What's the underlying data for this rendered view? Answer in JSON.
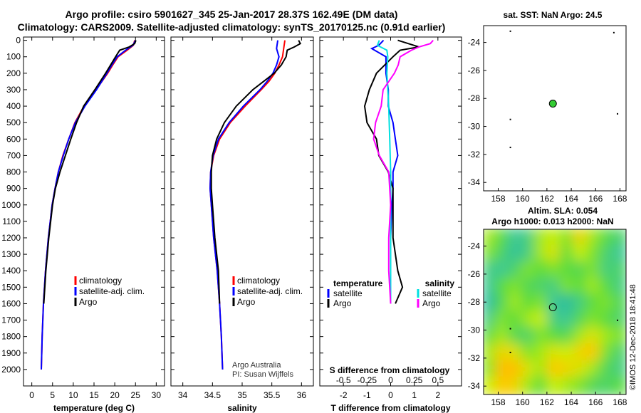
{
  "title_line1": "Argo profile: csiro 5901627_345 25-Jan-2017 28.37S 162.49E (DM data)",
  "title_line2": "Climatology: CARS2009. Satellite-adjusted climatology: synTS_20170125.nc (0.91d earlier)",
  "colors": {
    "climatology": "#ff0000",
    "satellite": "#0000ff",
    "argo": "#000000",
    "s_satellite": "#00e0e0",
    "s_argo": "#ff00ff"
  },
  "depth_ticks": [
    0,
    100,
    200,
    300,
    400,
    500,
    600,
    700,
    800,
    900,
    1000,
    1100,
    1200,
    1300,
    1400,
    1500,
    1600,
    1700,
    1800,
    1900,
    2000
  ],
  "chart_data": [
    {
      "type": "line",
      "name": "temperature",
      "xlabel": "temperature (deg C)",
      "xlim": [
        -2,
        32
      ],
      "ylim": [
        2100,
        -20
      ],
      "xticks": [
        0,
        5,
        10,
        15,
        20,
        25,
        30
      ],
      "legend": [
        "climatology",
        "satellite-adj. clim.",
        "Argo"
      ],
      "series": [
        {
          "name": "climatology",
          "depth": [
            0,
            30,
            60,
            100,
            150,
            200,
            300,
            400,
            500,
            600,
            700,
            800,
            900,
            1000,
            1200,
            1400,
            1600,
            1800,
            2000
          ],
          "values": [
            24.8,
            24.5,
            23.0,
            20.8,
            19.5,
            18.3,
            15.5,
            12.6,
            10.4,
            8.9,
            7.5,
            6.4,
            5.6,
            4.9,
            4.0,
            3.3,
            2.8,
            2.5,
            2.3
          ]
        },
        {
          "name": "satellite-adj. clim.",
          "depth": [
            0,
            30,
            60,
            100,
            150,
            200,
            300,
            400,
            500,
            600,
            700,
            800,
            900,
            1000,
            1200,
            1400,
            1600,
            1800,
            2000
          ],
          "values": [
            25.0,
            24.4,
            22.6,
            20.6,
            19.3,
            18.1,
            15.6,
            12.8,
            10.5,
            8.9,
            7.6,
            6.4,
            5.6,
            4.9,
            4.0,
            3.3,
            2.8,
            2.5,
            2.3
          ]
        },
        {
          "name": "Argo",
          "depth": [
            0,
            20,
            40,
            60,
            100,
            150,
            200,
            300,
            400,
            500,
            600,
            700,
            800,
            900,
            1000,
            1200,
            1400,
            1600
          ],
          "values": [
            25.1,
            24.8,
            23.5,
            21.2,
            20.2,
            19.0,
            17.8,
            15.2,
            12.5,
            10.8,
            9.4,
            8.1,
            6.8,
            5.7,
            5.0,
            4.1,
            3.4,
            2.9
          ]
        }
      ]
    },
    {
      "type": "line",
      "name": "salinity",
      "xlabel": "salinity",
      "xlim": [
        33.8,
        36.2
      ],
      "ylim": [
        2100,
        -20
      ],
      "xticks": [
        34,
        34.5,
        35,
        35.5,
        36
      ],
      "xticklabels": [
        "34",
        "34.5",
        "35",
        "35.5",
        "36"
      ],
      "legend": [
        "climatology",
        "satellite-adj. clim.",
        "Argo"
      ],
      "annotation": [
        "Argo Australia",
        "PI: Susan Wijffels"
      ],
      "series": [
        {
          "name": "climatology",
          "depth": [
            0,
            50,
            100,
            150,
            200,
            250,
            300,
            400,
            500,
            600,
            700,
            800,
            900,
            1000,
            1200,
            1400,
            1600,
            1800,
            2000
          ],
          "values": [
            35.72,
            35.7,
            35.68,
            35.62,
            35.55,
            35.45,
            35.32,
            35.05,
            34.8,
            34.62,
            34.52,
            34.47,
            34.46,
            34.48,
            34.52,
            34.58,
            34.62,
            34.65,
            34.67
          ]
        },
        {
          "name": "satellite-adj. clim.",
          "depth": [
            0,
            50,
            100,
            150,
            200,
            250,
            300,
            400,
            500,
            600,
            700,
            800,
            900,
            1000,
            1200,
            1400,
            1600,
            1800,
            2000
          ],
          "values": [
            35.6,
            35.58,
            35.62,
            35.58,
            35.52,
            35.42,
            35.3,
            35.02,
            34.78,
            34.6,
            34.51,
            34.47,
            34.46,
            34.48,
            34.52,
            34.58,
            34.62,
            34.65,
            34.67
          ]
        },
        {
          "name": "Argo",
          "depth": [
            0,
            20,
            40,
            60,
            100,
            150,
            200,
            250,
            300,
            400,
            500,
            600,
            700,
            800,
            900,
            1000,
            1200,
            1400,
            1600
          ],
          "values": [
            35.95,
            35.98,
            35.88,
            35.76,
            35.74,
            35.66,
            35.54,
            35.36,
            35.18,
            34.9,
            34.7,
            34.57,
            34.5,
            34.48,
            34.48,
            34.5,
            34.54,
            34.6,
            34.62
          ]
        }
      ]
    },
    {
      "type": "line",
      "name": "difference",
      "xlabel": "T difference from climatology",
      "xlabel_s": "S difference from climatology",
      "xlim": [
        -3,
        3
      ],
      "ylim": [
        2100,
        -20
      ],
      "xticks": [
        -2,
        -1,
        0,
        1,
        2
      ],
      "xticklabels": [
        "-2",
        "-1",
        "0",
        "1",
        "2"
      ],
      "s_ticks": [
        -0.5,
        -0.25,
        0,
        0.25,
        0.5
      ],
      "s_ticklabels": [
        "-0.5",
        "-0.25",
        "0",
        "0.25",
        "0.5"
      ],
      "legend_t_title": "temperature",
      "legend_s_title": "salinity",
      "legend_t": [
        "satellite",
        "Argo"
      ],
      "legend_s": [
        "satellite",
        "Argo"
      ],
      "series": [
        {
          "name": "T satellite",
          "depth": [
            0,
            30,
            50,
            100,
            200,
            300,
            400,
            500,
            600,
            700,
            800,
            900,
            1000,
            1200,
            1400,
            1600
          ],
          "values": [
            -0.3,
            -0.5,
            -0.8,
            -0.2,
            -0.2,
            -0.1,
            -0.1,
            0.1,
            0.2,
            0.3,
            0.1,
            0.1,
            0.05,
            0.0,
            0.0,
            0.0
          ]
        },
        {
          "name": "T Argo",
          "depth": [
            0,
            40,
            60,
            100,
            200,
            300,
            400,
            500,
            600,
            700,
            800,
            900,
            1000,
            1200,
            1400,
            1500,
            1600
          ],
          "values": [
            0.3,
            1.2,
            0.4,
            0.1,
            -0.6,
            -0.9,
            -1.1,
            -1.0,
            -0.6,
            -0.5,
            -0.1,
            0.1,
            0.1,
            0.1,
            0.3,
            0.5,
            0.2
          ]
        },
        {
          "name": "S satellite",
          "depth": [
            0,
            30,
            60,
            100,
            200,
            300,
            400,
            600,
            800,
            1000,
            1200,
            1400,
            1600
          ],
          "values": [
            -0.12,
            -0.14,
            -0.04,
            -0.03,
            -0.04,
            -0.03,
            -0.02,
            -0.01,
            0.0,
            0.0,
            0.0,
            0.0,
            0.0
          ]
        },
        {
          "name": "S Argo",
          "depth": [
            0,
            20,
            40,
            60,
            100,
            150,
            200,
            300,
            400,
            500,
            600,
            700,
            800,
            1000,
            1200,
            1400,
            1600
          ],
          "values": [
            0.45,
            0.42,
            0.3,
            0.22,
            0.1,
            0.08,
            0.04,
            -0.08,
            -0.1,
            -0.16,
            -0.18,
            -0.12,
            -0.02,
            0.0,
            -0.02,
            -0.02,
            0.0
          ]
        }
      ]
    },
    {
      "type": "scatter",
      "name": "sst-map",
      "title": "sat. SST: NaN Argo: 24.5",
      "xlim": [
        156.8,
        168.5
      ],
      "ylim": [
        -34.6,
        -22.8
      ],
      "xticks": [
        158,
        160,
        162,
        164,
        166,
        168
      ],
      "yticks": [
        -24,
        -26,
        -28,
        -30,
        -32,
        -34
      ],
      "argo_position": [
        162.49,
        -28.37
      ],
      "points": [
        [
          159.0,
          -23.2
        ],
        [
          167.5,
          -23.3
        ],
        [
          159.0,
          -29.5
        ],
        [
          167.8,
          -29.1
        ],
        [
          159.0,
          -31.5
        ]
      ]
    },
    {
      "type": "heatmap",
      "name": "altimetry-map",
      "title1": "Altim. SLA: 0.054",
      "title2": "Argo h1000: 0.013 h2000: NaN",
      "xlim": [
        156.8,
        168.5
      ],
      "ylim": [
        -34.6,
        -22.8
      ],
      "xticks": [
        158,
        160,
        162,
        164,
        166,
        168
      ],
      "yticks": [
        -24,
        -26,
        -28,
        -30,
        -32,
        -34
      ],
      "argo_position": [
        162.49,
        -28.37
      ],
      "points": [
        [
          159.0,
          -29.9
        ],
        [
          167.8,
          -29.3
        ],
        [
          159.0,
          -31.6
        ]
      ],
      "grid": [
        [
          0.55,
          0.45,
          0.25,
          0.3,
          0.55,
          0.6,
          0.5,
          0.7,
          0.55,
          0.45,
          0.35
        ],
        [
          0.5,
          0.35,
          0.2,
          0.3,
          0.55,
          0.65,
          0.45,
          0.6,
          0.5,
          0.35,
          0.25
        ],
        [
          0.3,
          0.25,
          0.35,
          0.5,
          0.45,
          0.5,
          0.45,
          0.4,
          0.5,
          0.3,
          0.35
        ],
        [
          0.25,
          0.45,
          0.5,
          0.4,
          0.35,
          0.3,
          0.5,
          0.45,
          0.55,
          0.45,
          0.3
        ],
        [
          0.15,
          0.4,
          0.55,
          0.45,
          0.5,
          0.25,
          0.15,
          0.3,
          0.45,
          0.5,
          0.4
        ],
        [
          0.3,
          0.5,
          0.45,
          0.55,
          0.6,
          0.3,
          0.25,
          0.4,
          0.5,
          0.45,
          0.35
        ],
        [
          0.45,
          0.55,
          0.4,
          0.35,
          0.5,
          0.45,
          0.4,
          0.55,
          0.65,
          0.55,
          0.5
        ],
        [
          0.55,
          0.7,
          0.65,
          0.5,
          0.55,
          0.65,
          0.6,
          0.7,
          0.75,
          0.5,
          0.35
        ],
        [
          0.5,
          0.8,
          0.8,
          0.65,
          0.55,
          0.75,
          0.7,
          0.65,
          0.55,
          0.4,
          0.3
        ],
        [
          0.6,
          0.75,
          0.7,
          0.55,
          0.45,
          0.6,
          0.55,
          0.5,
          0.4,
          0.35,
          0.45
        ]
      ]
    }
  ],
  "side_label": "©IMOS 12-Dec-2018 18:41:48"
}
